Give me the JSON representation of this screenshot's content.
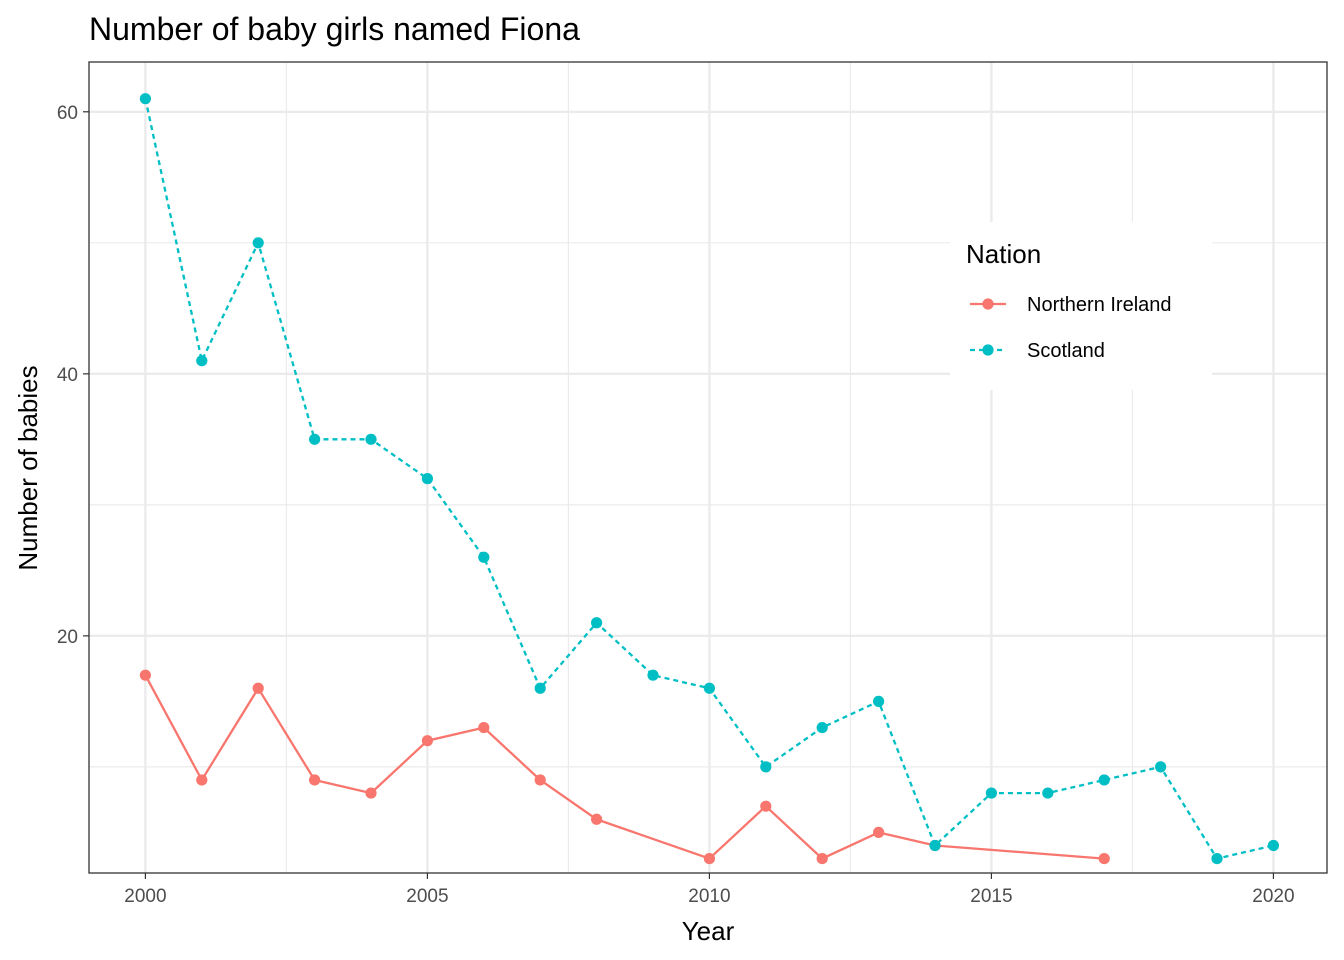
{
  "chart_data": {
    "type": "line",
    "title": "Number of baby girls named Fiona",
    "xlabel": "Year",
    "ylabel": "Number of babies",
    "xlim": [
      1999.0,
      2020.95
    ],
    "ylim": [
      1.9,
      63.8
    ],
    "x_ticks": [
      2000,
      2005,
      2010,
      2015,
      2020
    ],
    "y_ticks": [
      20,
      40,
      60
    ],
    "grid": true,
    "legend": {
      "title": "Nation",
      "position": "top-right, inside plot"
    },
    "series": [
      {
        "name": "Northern Ireland",
        "color": "#F8766D",
        "line_style": "solid",
        "x": [
          2000,
          2001,
          2002,
          2003,
          2004,
          2005,
          2006,
          2007,
          2008,
          2010,
          2011,
          2012,
          2013,
          2014,
          2017
        ],
        "values": [
          17,
          9,
          16,
          9,
          8,
          12,
          13,
          9,
          6,
          3,
          7,
          3,
          5,
          4,
          3
        ]
      },
      {
        "name": "Scotland",
        "color": "#00BFC4",
        "line_style": "dashed",
        "x": [
          2000,
          2001,
          2002,
          2003,
          2004,
          2005,
          2006,
          2007,
          2008,
          2009,
          2010,
          2011,
          2012,
          2013,
          2014,
          2015,
          2016,
          2017,
          2018,
          2019,
          2020
        ],
        "values": [
          61,
          41,
          50,
          35,
          35,
          32,
          26,
          16,
          21,
          17,
          16,
          10,
          13,
          15,
          4,
          8,
          8,
          9,
          10,
          3,
          4
        ]
      }
    ]
  }
}
